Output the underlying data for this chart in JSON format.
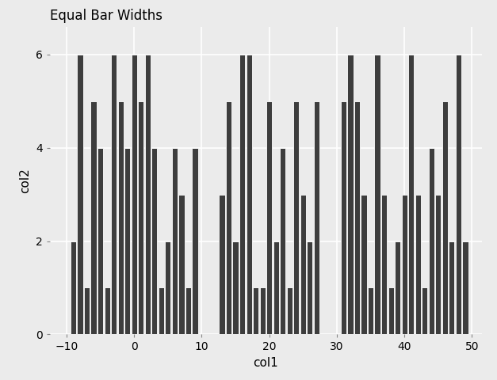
{
  "title": "Equal Bar Widths",
  "xlabel": "col1",
  "ylabel": "col2",
  "xlim": [
    -12.5,
    51.5
  ],
  "ylim": [
    0,
    6.6
  ],
  "background_color": "#EBEBEB",
  "bar_color": "#3D3D3D",
  "bar_edge_color": "white",
  "bar_width": 0.85,
  "x_ticks": [
    -10,
    0,
    10,
    20,
    30,
    40,
    50
  ],
  "y_ticks": [
    0,
    2,
    4,
    6
  ],
  "col1": [
    -9,
    -8,
    -7,
    -6,
    -5,
    -4,
    -3,
    -2,
    -1,
    0,
    1,
    2,
    3,
    4,
    5,
    6,
    7,
    8,
    9,
    13,
    14,
    15,
    16,
    17,
    18,
    19,
    20,
    21,
    22,
    23,
    24,
    25,
    26,
    27,
    31,
    32,
    33,
    34,
    35,
    36,
    37,
    38,
    39,
    40,
    41,
    42,
    43,
    44,
    45,
    46,
    47,
    48,
    49
  ],
  "col2": [
    2,
    6,
    1,
    5,
    4,
    1,
    6,
    5,
    4,
    6,
    5,
    6,
    4,
    1,
    2,
    4,
    3,
    1,
    4,
    3,
    5,
    2,
    6,
    6,
    1,
    1,
    5,
    2,
    4,
    1,
    5,
    3,
    2,
    5,
    5,
    6,
    5,
    3,
    1,
    6,
    3,
    1,
    2,
    3,
    6,
    3,
    1,
    4,
    3,
    5,
    2,
    6,
    2
  ],
  "title_fontsize": 12,
  "axis_label_fontsize": 11,
  "tick_fontsize": 10,
  "grid_color": "white",
  "grid_linewidth": 1.2
}
